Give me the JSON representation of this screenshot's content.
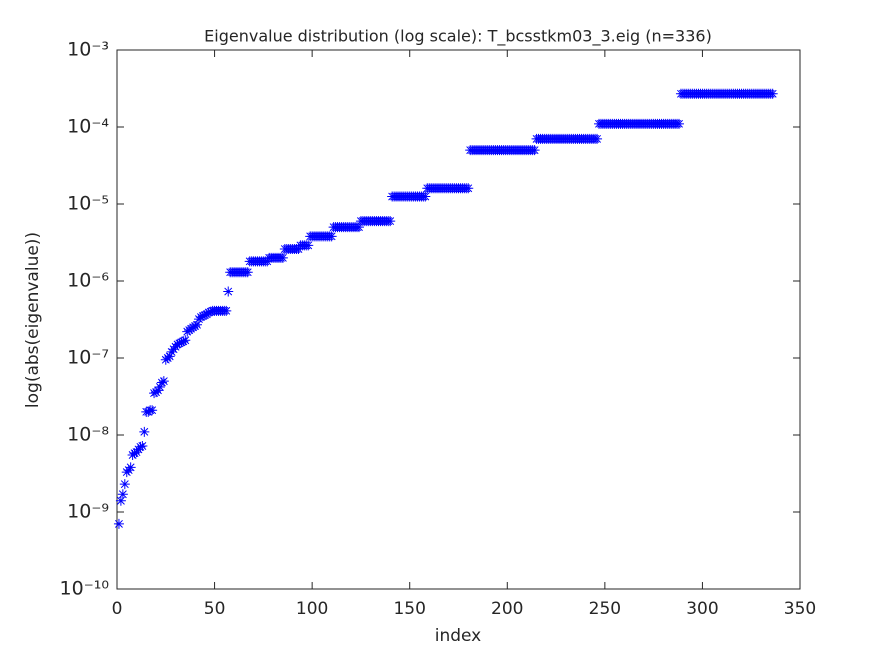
{
  "chart_data": {
    "type": "scatter",
    "title": "Eigenvalue distribution (log scale): T_bcsstkm03_3.eig (n=336)",
    "x_label": "index",
    "y_label": "log(abs(eigenvalue))",
    "log_y": true,
    "grid": false,
    "marker": "asterisk",
    "xlim": [
      0,
      350
    ],
    "xticks": [
      0,
      50,
      100,
      150,
      200,
      250,
      300,
      350
    ],
    "ylim": [
      1e-10,
      0.001
    ],
    "yticks": [
      {
        "value": 1e-10,
        "label": "10⁻¹⁰"
      },
      {
        "value": 1e-09,
        "label": "10⁻⁹"
      },
      {
        "value": 1e-08,
        "label": "10⁻⁸"
      },
      {
        "value": 1e-07,
        "label": "10⁻⁷"
      },
      {
        "value": 1e-06,
        "label": "10⁻⁶"
      },
      {
        "value": 1e-05,
        "label": "10⁻⁵"
      },
      {
        "value": 0.0001,
        "label": "10⁻⁴"
      },
      {
        "value": 0.001,
        "label": "10⁻³"
      }
    ],
    "series": [
      {
        "color": "#0000ff",
        "x": [
          1,
          2,
          3,
          4,
          5,
          6,
          7,
          8,
          9,
          10,
          11,
          12,
          13,
          14,
          15,
          16,
          17,
          18,
          19,
          20,
          21,
          22,
          23,
          24,
          25,
          26,
          27,
          28,
          29,
          30,
          31,
          32,
          33,
          34,
          35,
          36,
          37,
          38,
          39,
          40,
          41,
          42,
          43,
          44,
          45,
          46,
          47,
          48,
          49,
          50,
          51,
          52,
          53,
          54,
          55,
          56,
          57,
          58,
          59,
          60,
          61,
          62,
          63,
          64,
          65,
          66,
          67,
          68,
          69,
          70,
          71,
          72,
          73,
          74,
          75,
          76,
          77,
          78,
          79,
          80,
          81,
          82,
          83,
          84,
          85,
          86,
          87,
          88,
          89,
          90,
          91,
          92,
          93,
          94,
          95,
          96,
          97,
          98,
          99,
          100,
          101,
          102,
          103,
          104,
          105,
          106,
          107,
          108,
          109,
          110,
          111,
          112,
          113,
          114,
          115,
          116,
          117,
          118,
          119,
          120,
          121,
          122,
          123,
          124,
          125,
          126,
          127,
          128,
          129,
          130,
          131,
          132,
          133,
          134,
          135,
          136,
          137,
          138,
          139,
          140,
          141,
          142,
          143,
          144,
          145,
          146,
          147,
          148,
          149,
          150,
          151,
          152,
          153,
          154,
          155,
          156,
          157,
          158,
          159,
          160,
          161,
          162,
          163,
          164,
          165,
          166,
          167,
          168,
          169,
          170,
          171,
          172,
          173,
          174,
          175,
          176,
          177,
          178,
          179,
          180,
          181,
          182,
          183,
          184,
          185,
          186,
          187,
          188,
          189,
          190,
          191,
          192,
          193,
          194,
          195,
          196,
          197,
          198,
          199,
          200,
          201,
          202,
          203,
          204,
          205,
          206,
          207,
          208,
          209,
          210,
          211,
          212,
          213,
          214,
          215,
          216,
          217,
          218,
          219,
          220,
          221,
          222,
          223,
          224,
          225,
          226,
          227,
          228,
          229,
          230,
          231,
          232,
          233,
          234,
          235,
          236,
          237,
          238,
          239,
          240,
          241,
          242,
          243,
          244,
          245,
          246,
          247,
          248,
          249,
          250,
          251,
          252,
          253,
          254,
          255,
          256,
          257,
          258,
          259,
          260,
          261,
          262,
          263,
          264,
          265,
          266,
          267,
          268,
          269,
          270,
          271,
          272,
          273,
          274,
          275,
          276,
          277,
          278,
          279,
          280,
          281,
          282,
          283,
          284,
          285,
          286,
          287,
          288,
          289,
          290,
          291,
          292,
          293,
          294,
          295,
          296,
          297,
          298,
          299,
          300,
          301,
          302,
          303,
          304,
          305,
          306,
          307,
          308,
          309,
          310,
          311,
          312,
          313,
          314,
          315,
          316,
          317,
          318,
          319,
          320,
          321,
          322,
          323,
          324,
          325,
          326,
          327,
          328,
          329,
          330,
          331,
          332,
          333,
          334,
          335,
          336
        ],
        "values": [
          7e-10,
          1.4e-09,
          1.7e-09,
          2.3e-09,
          3.3e-09,
          3.5e-09,
          3.8e-09,
          5.5e-09,
          5.8e-09,
          6e-09,
          6.5e-09,
          7e-09,
          7.2e-09,
          1.1e-08,
          2e-08,
          2e-08,
          2.1e-08,
          2.1e-08,
          3.5e-08,
          3.6e-08,
          3.8e-08,
          4.2e-08,
          4.8e-08,
          5e-08,
          9.5e-08,
          1e-07,
          1.05e-07,
          1.2e-07,
          1.3e-07,
          1.4e-07,
          1.5e-07,
          1.55e-07,
          1.6e-07,
          1.65e-07,
          1.7e-07,
          2.2e-07,
          2.3e-07,
          2.4e-07,
          2.5e-07,
          2.6e-07,
          2.7e-07,
          3.2e-07,
          3.4e-07,
          3.5e-07,
          3.6e-07,
          3.7e-07,
          3.9e-07,
          4e-07,
          4.1e-07,
          4.1e-07,
          4.1e-07,
          4.1e-07,
          4.1e-07,
          4.1e-07,
          4.1e-07,
          4.1e-07,
          7.3e-07,
          1.3e-06,
          1.3e-06,
          1.3e-06,
          1.3e-06,
          1.3e-06,
          1.3e-06,
          1.3e-06,
          1.3e-06,
          1.3e-06,
          1.3e-06,
          1.8e-06,
          1.8e-06,
          1.8e-06,
          1.8e-06,
          1.8e-06,
          1.8e-06,
          1.8e-06,
          1.8e-06,
          1.8e-06,
          1.8e-06,
          2e-06,
          2e-06,
          2e-06,
          2e-06,
          2e-06,
          2e-06,
          2e-06,
          2e-06,
          2.6e-06,
          2.6e-06,
          2.6e-06,
          2.6e-06,
          2.6e-06,
          2.6e-06,
          2.6e-06,
          2.6e-06,
          2.9e-06,
          2.9e-06,
          2.9e-06,
          2.9e-06,
          2.9e-06,
          3.8e-06,
          3.8e-06,
          3.8e-06,
          3.8e-06,
          3.8e-06,
          3.8e-06,
          3.8e-06,
          3.8e-06,
          3.8e-06,
          3.8e-06,
          3.8e-06,
          3.8e-06,
          5e-06,
          5e-06,
          5e-06,
          5e-06,
          5e-06,
          5e-06,
          5e-06,
          5e-06,
          5e-06,
          5e-06,
          5e-06,
          5e-06,
          5e-06,
          5e-06,
          6e-06,
          6e-06,
          6e-06,
          6e-06,
          6e-06,
          6e-06,
          6e-06,
          6e-06,
          6e-06,
          6e-06,
          6e-06,
          6e-06,
          6e-06,
          6e-06,
          6e-06,
          6e-06,
          1.25e-05,
          1.25e-05,
          1.25e-05,
          1.25e-05,
          1.25e-05,
          1.25e-05,
          1.25e-05,
          1.25e-05,
          1.25e-05,
          1.25e-05,
          1.25e-05,
          1.25e-05,
          1.25e-05,
          1.25e-05,
          1.25e-05,
          1.25e-05,
          1.25e-05,
          1.25e-05,
          1.6e-05,
          1.6e-05,
          1.6e-05,
          1.6e-05,
          1.6e-05,
          1.6e-05,
          1.6e-05,
          1.6e-05,
          1.6e-05,
          1.6e-05,
          1.6e-05,
          1.6e-05,
          1.6e-05,
          1.6e-05,
          1.6e-05,
          1.6e-05,
          1.6e-05,
          1.6e-05,
          1.6e-05,
          1.6e-05,
          1.6e-05,
          1.6e-05,
          5e-05,
          5e-05,
          5e-05,
          5e-05,
          5e-05,
          5e-05,
          5e-05,
          5e-05,
          5e-05,
          5e-05,
          5e-05,
          5e-05,
          5e-05,
          5e-05,
          5e-05,
          5e-05,
          5e-05,
          5e-05,
          5e-05,
          5e-05,
          5e-05,
          5e-05,
          5e-05,
          5e-05,
          5e-05,
          5e-05,
          5e-05,
          5e-05,
          5e-05,
          5e-05,
          5e-05,
          5e-05,
          5e-05,
          5e-05,
          7e-05,
          7e-05,
          7e-05,
          7e-05,
          7e-05,
          7e-05,
          7e-05,
          7e-05,
          7e-05,
          7e-05,
          7e-05,
          7e-05,
          7e-05,
          7e-05,
          7e-05,
          7e-05,
          7e-05,
          7e-05,
          7e-05,
          7e-05,
          7e-05,
          7e-05,
          7e-05,
          7e-05,
          7e-05,
          7e-05,
          7e-05,
          7e-05,
          7e-05,
          7e-05,
          7e-05,
          7e-05,
          0.00011,
          0.00011,
          0.00011,
          0.00011,
          0.00011,
          0.00011,
          0.00011,
          0.00011,
          0.00011,
          0.00011,
          0.00011,
          0.00011,
          0.00011,
          0.00011,
          0.00011,
          0.00011,
          0.00011,
          0.00011,
          0.00011,
          0.00011,
          0.00011,
          0.00011,
          0.00011,
          0.00011,
          0.00011,
          0.00011,
          0.00011,
          0.00011,
          0.00011,
          0.00011,
          0.00011,
          0.00011,
          0.00011,
          0.00011,
          0.00011,
          0.00011,
          0.00011,
          0.00011,
          0.00011,
          0.00011,
          0.00011,
          0.00011,
          0.00027,
          0.00027,
          0.00027,
          0.00027,
          0.00027,
          0.00027,
          0.00027,
          0.00027,
          0.00027,
          0.00027,
          0.00027,
          0.00027,
          0.00027,
          0.00027,
          0.00027,
          0.00027,
          0.00027,
          0.00027,
          0.00027,
          0.00027,
          0.00027,
          0.00027,
          0.00027,
          0.00027,
          0.00027,
          0.00027,
          0.00027,
          0.00027,
          0.00027,
          0.00027,
          0.00027,
          0.00027,
          0.00027,
          0.00027,
          0.00027,
          0.00027,
          0.00027,
          0.00027,
          0.00027,
          0.00027,
          0.00027,
          0.00027,
          0.00027,
          0.00027,
          0.00027,
          0.00027,
          0.00027,
          0.00027
        ]
      }
    ]
  }
}
